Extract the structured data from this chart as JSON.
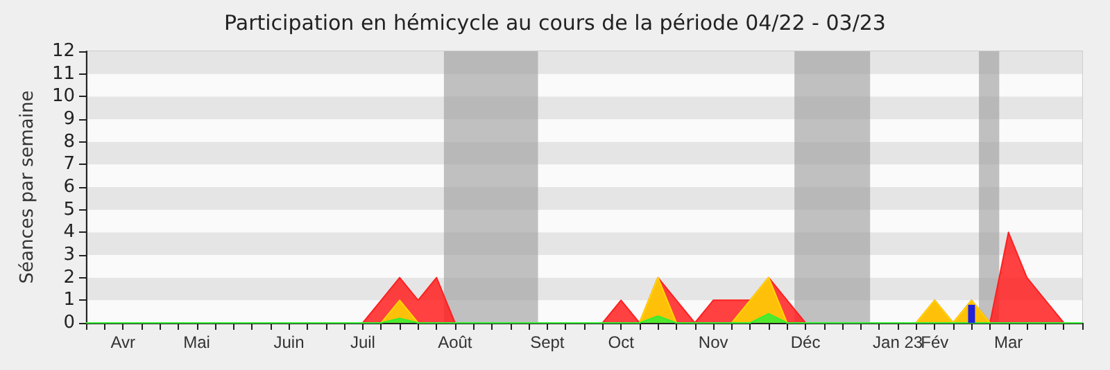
{
  "chart_data": {
    "type": "area",
    "title": "Participation en hémicycle au cours de la période 04/22 - 03/23",
    "ylabel": "Séances par semaine",
    "categories": [
      null,
      null,
      "Avr",
      null,
      null,
      null,
      "Mai",
      null,
      null,
      null,
      null,
      "Juin",
      null,
      null,
      null,
      "Juil",
      null,
      null,
      null,
      null,
      "Août",
      null,
      null,
      null,
      null,
      "Sept",
      null,
      null,
      null,
      "Oct",
      null,
      null,
      null,
      null,
      "Nov",
      null,
      null,
      null,
      null,
      "Déc",
      null,
      null,
      null,
      null,
      "Jan 23",
      null,
      "Fév",
      null,
      null,
      null,
      "Mar",
      null,
      null,
      null,
      null
    ],
    "series": [
      {
        "color": "#ff2020",
        "values": [
          0,
          0,
          0,
          0,
          0,
          0,
          0,
          0,
          0,
          0,
          0,
          0,
          0,
          0,
          0,
          0,
          1,
          2,
          1,
          2,
          0,
          0,
          0,
          0,
          0,
          0,
          0,
          0,
          0,
          1,
          0,
          2,
          1,
          0,
          1,
          1,
          1,
          2,
          1,
          0,
          0,
          0,
          0,
          0,
          0,
          0,
          1,
          0,
          1,
          0,
          4,
          2,
          1,
          0,
          0
        ]
      },
      {
        "color": "#ffd700",
        "values": [
          0,
          0,
          0,
          0,
          0,
          0,
          0,
          0,
          0,
          0,
          0,
          0,
          0,
          0,
          0,
          0,
          0,
          1,
          0,
          0,
          0,
          0,
          0,
          0,
          0,
          0,
          0,
          0,
          0,
          0,
          0,
          2,
          0,
          0,
          0,
          0,
          1,
          2,
          0,
          0,
          0,
          0,
          0,
          0,
          0,
          0,
          1,
          0,
          1,
          0,
          0,
          0,
          0,
          0,
          0
        ]
      },
      {
        "color": "#33ee33",
        "values": [
          0,
          0,
          0,
          0,
          0,
          0,
          0,
          0,
          0,
          0,
          0,
          0,
          0,
          0,
          0,
          0,
          0,
          0.2,
          0,
          0,
          0,
          0,
          0,
          0,
          0,
          0,
          0,
          0,
          0,
          0,
          0,
          0.3,
          0,
          0,
          0,
          0,
          0,
          0.4,
          0,
          0,
          0,
          0,
          0,
          0,
          0,
          0,
          0,
          0,
          0,
          0,
          0,
          0,
          0,
          0,
          0
        ]
      },
      {
        "type": "bar",
        "color": "#2020dd",
        "values": [
          null,
          null,
          null,
          null,
          null,
          null,
          null,
          null,
          null,
          null,
          null,
          null,
          null,
          null,
          null,
          null,
          null,
          null,
          null,
          null,
          null,
          null,
          null,
          null,
          null,
          null,
          null,
          null,
          null,
          null,
          null,
          null,
          null,
          null,
          null,
          null,
          null,
          null,
          null,
          null,
          null,
          null,
          null,
          null,
          null,
          null,
          null,
          null,
          0.8,
          null,
          null,
          null,
          null,
          null,
          null
        ]
      }
    ],
    "ylim": [
      0,
      12
    ],
    "yticks": [
      0,
      1,
      2,
      3,
      4,
      5,
      6,
      7,
      8,
      9,
      10,
      11,
      12
    ]
  }
}
